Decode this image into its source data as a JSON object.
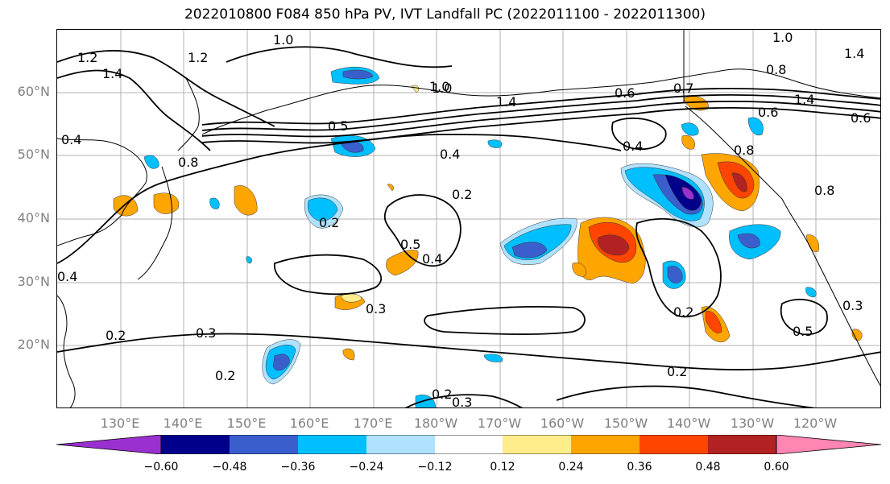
{
  "title": "2022010800 F084 850 hPa PV, IVT Landfall PC (2022011100 - 2022011300)",
  "lat_labels": [
    "60°N",
    "50°N",
    "40°N",
    "30°N",
    "20°N"
  ],
  "lon_labels": [
    "130°E",
    "140°E",
    "150°E",
    "160°E",
    "170°E",
    "180°W",
    "170°W",
    "160°W",
    "150°W",
    "140°W",
    "130°W",
    "120°W"
  ],
  "contour_labels": [
    "1.0",
    "1.2",
    "1.4",
    "1.2",
    "1.0",
    "1.4",
    "0.4",
    "0.8",
    "0.5",
    "1.0",
    "1.4",
    "0.8",
    "0.6",
    "0.7",
    "0.4",
    "0.2",
    "0.4",
    "0.5",
    "0.4",
    "0.2",
    "0.3",
    "0.3",
    "0.2",
    "0.2",
    "0.3",
    "0.2",
    "0.2",
    "0.5",
    "0.4",
    "0.6",
    "0.8",
    "0.3",
    "0.6",
    "1.4",
    "1.0",
    "0.8",
    "0.2"
  ],
  "colorbar": {
    "colors": [
      "#9b30d0",
      "#00008b",
      "#3a5fcd",
      "#00bfff",
      "#b0e2ff",
      "#ffffff",
      "#ffec8b",
      "#ffa500",
      "#ff4500",
      "#b22222",
      "#ff85b3"
    ],
    "ticks": [
      "−0.60",
      "−0.48",
      "−0.36",
      "−0.24",
      "−0.12",
      "0.12",
      "0.24",
      "0.36",
      "0.48",
      "0.60"
    ]
  }
}
